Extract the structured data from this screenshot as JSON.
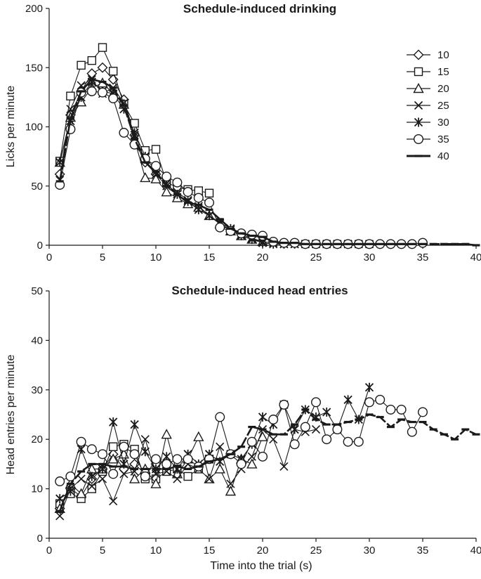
{
  "chart_data": [
    {
      "type": "line",
      "title": "Schedule-induced drinking",
      "xlabel": "",
      "ylabel": "Licks per minute",
      "xlim": [
        0,
        40
      ],
      "ylim": [
        0,
        200
      ],
      "xticks": [
        0,
        5,
        10,
        15,
        20,
        25,
        30,
        35,
        40
      ],
      "yticks": [
        0,
        50,
        100,
        150,
        200
      ],
      "legend": "top-right",
      "series": [
        {
          "name": "10",
          "marker": "diamond",
          "x": [
            1,
            2,
            3,
            4,
            5,
            6,
            7,
            8,
            9,
            10
          ],
          "values": [
            60,
            110,
            130,
            145,
            150,
            140,
            123,
            93,
            70,
            60
          ]
        },
        {
          "name": "15",
          "marker": "square",
          "x": [
            1,
            2,
            3,
            4,
            5,
            6,
            7,
            8,
            9,
            10,
            11,
            12,
            13,
            14,
            15
          ],
          "values": [
            71,
            126,
            152,
            156,
            167,
            147,
            119,
            103,
            80,
            81,
            53,
            49,
            47,
            46,
            44
          ]
        },
        {
          "name": "20",
          "marker": "triangle",
          "x": [
            1,
            2,
            3,
            4,
            5,
            6,
            7,
            8,
            9,
            10,
            11,
            12,
            13,
            14,
            15,
            16,
            17,
            18,
            19,
            20
          ],
          "values": [
            70,
            108,
            121,
            133,
            137,
            128,
            119,
            89,
            57,
            56,
            45,
            40,
            35,
            32,
            25,
            18,
            12,
            8,
            5,
            3
          ]
        },
        {
          "name": "25",
          "marker": "x",
          "x": [
            1,
            2,
            3,
            4,
            5,
            6,
            7,
            8,
            9,
            10,
            11,
            12,
            13,
            14,
            15,
            16,
            17,
            18,
            19,
            20,
            21,
            22,
            23,
            24,
            25
          ],
          "values": [
            55,
            115,
            135,
            140,
            128,
            133,
            120,
            93,
            72,
            60,
            50,
            45,
            38,
            33,
            25,
            18,
            13,
            9,
            6,
            3,
            2,
            1,
            1,
            1,
            1
          ]
        },
        {
          "name": "30",
          "marker": "star",
          "x": [
            1,
            2,
            3,
            4,
            5,
            6,
            7,
            8,
            9,
            10,
            11,
            12,
            13,
            14,
            15,
            16,
            17,
            18,
            19,
            20,
            21,
            22,
            23,
            24,
            25,
            26,
            27,
            28,
            29,
            30
          ],
          "values": [
            70,
            105,
            125,
            138,
            130,
            128,
            115,
            95,
            75,
            62,
            52,
            43,
            37,
            30,
            25,
            19,
            14,
            8,
            5,
            2,
            1,
            1,
            1,
            1,
            1,
            1,
            1,
            1,
            1,
            1
          ]
        },
        {
          "name": "35",
          "marker": "circle",
          "x": [
            1,
            2,
            3,
            4,
            5,
            6,
            7,
            8,
            9,
            10,
            11,
            12,
            13,
            14,
            15,
            16,
            17,
            18,
            19,
            20,
            21,
            22,
            23,
            24,
            25,
            26,
            27,
            28,
            29,
            30,
            31,
            32,
            33,
            34,
            35
          ],
          "values": [
            51,
            98,
            129,
            130,
            129,
            124,
            95,
            85,
            73,
            67,
            58,
            53,
            45,
            40,
            36,
            15,
            12,
            10,
            9,
            8,
            3,
            2,
            2,
            1,
            1,
            1,
            1,
            1,
            1,
            1,
            1,
            1,
            1,
            1,
            2
          ]
        },
        {
          "name": "40",
          "marker": "dash",
          "x": [
            1,
            2,
            3,
            4,
            5,
            6,
            7,
            8,
            9,
            10,
            11,
            12,
            13,
            14,
            15,
            16,
            17,
            18,
            19,
            20,
            21,
            22,
            23,
            24,
            25,
            26,
            27,
            28,
            29,
            30,
            31,
            32,
            33,
            34,
            35,
            36,
            37,
            38,
            39,
            40
          ],
          "values": [
            54,
            107,
            130,
            140,
            138,
            133,
            118,
            90,
            70,
            62,
            50,
            43,
            36,
            34,
            30,
            22,
            14,
            10,
            8,
            7,
            3,
            2,
            2,
            1,
            1,
            1,
            1,
            1,
            1,
            1,
            1,
            1,
            1,
            1,
            1,
            1,
            1,
            1,
            1,
            0
          ]
        }
      ]
    },
    {
      "type": "line",
      "title": "Schedule-induced head entries",
      "xlabel": "Time into the trial (s)",
      "ylabel": "Head entries per minute",
      "xlim": [
        0,
        40
      ],
      "ylim": [
        0,
        50
      ],
      "xticks": [
        0,
        5,
        10,
        15,
        20,
        25,
        30,
        35,
        40
      ],
      "yticks": [
        0,
        10,
        20,
        30,
        40,
        50
      ],
      "series": [
        {
          "name": "10",
          "marker": "diamond",
          "x": [
            1,
            2,
            3,
            4,
            5,
            6,
            7,
            8,
            9,
            10
          ],
          "values": [
            6,
            10,
            8.5,
            12,
            14,
            17,
            14,
            15,
            13,
            15
          ]
        },
        {
          "name": "15",
          "marker": "square",
          "x": [
            1,
            2,
            3,
            4,
            5,
            6,
            7,
            8,
            9,
            10,
            11,
            12,
            13,
            14,
            15
          ],
          "values": [
            7,
            9,
            8,
            10,
            13.5,
            18.5,
            19,
            18,
            12,
            12,
            13.5,
            14,
            12.5,
            14,
            16
          ]
        },
        {
          "name": "20",
          "marker": "triangle",
          "x": [
            1,
            2,
            3,
            4,
            5,
            6,
            7,
            8,
            9,
            10,
            11,
            12,
            13,
            14,
            15,
            16,
            17,
            18,
            19,
            20
          ],
          "values": [
            6,
            11,
            9,
            14,
            14,
            16,
            17,
            12,
            14,
            11,
            21,
            13,
            16,
            20.5,
            12,
            14,
            9.5,
            16,
            15,
            20.5
          ]
        },
        {
          "name": "25",
          "marker": "x",
          "x": [
            1,
            2,
            3,
            4,
            5,
            6,
            7,
            8,
            9,
            10,
            11,
            12,
            13,
            14,
            15,
            16,
            17,
            18,
            19,
            20,
            21,
            22,
            23,
            24,
            25
          ],
          "values": [
            4.5,
            10,
            12,
            10.5,
            12,
            7.5,
            13,
            13.5,
            20,
            13,
            13.5,
            12,
            15,
            14,
            12,
            18.5,
            11,
            14,
            16.5,
            22,
            20,
            14.5,
            22,
            21.5,
            22
          ]
        },
        {
          "name": "30",
          "marker": "star",
          "x": [
            1,
            2,
            3,
            4,
            5,
            6,
            7,
            8,
            9,
            10,
            11,
            12,
            13,
            14,
            15,
            16,
            17,
            18,
            19,
            20,
            21,
            22,
            23,
            24,
            25,
            26,
            27,
            28,
            29,
            30
          ],
          "values": [
            8,
            9.5,
            18,
            12.5,
            14,
            23.5,
            15,
            23,
            17.5,
            14,
            16.5,
            14,
            17,
            15,
            17,
            15.5,
            17,
            16,
            19,
            24.5,
            23,
            27,
            22,
            26,
            24.5,
            25.5,
            22,
            28,
            24,
            30.5
          ]
        },
        {
          "name": "35",
          "marker": "circle",
          "x": [
            1,
            2,
            3,
            4,
            5,
            6,
            7,
            8,
            9,
            10,
            11,
            12,
            13,
            14,
            15,
            16,
            17,
            18,
            19,
            20,
            21,
            22,
            23,
            24,
            25,
            26,
            27,
            28,
            29,
            30,
            31,
            32,
            33,
            34,
            35
          ],
          "values": [
            11.5,
            12.5,
            19.5,
            18,
            17,
            13,
            18.5,
            17,
            12.5,
            16,
            15,
            16,
            16,
            14.5,
            16,
            24.5,
            17,
            15,
            19.5,
            16.5,
            24,
            27,
            19,
            22.5,
            27.5,
            20,
            22,
            19.5,
            19.5,
            27.5,
            28,
            26,
            26,
            21.5,
            25.5
          ]
        },
        {
          "name": "40",
          "marker": "dash",
          "x": [
            1,
            2,
            3,
            4,
            5,
            6,
            7,
            8,
            9,
            10,
            11,
            12,
            13,
            14,
            15,
            16,
            17,
            18,
            19,
            20,
            21,
            22,
            23,
            24,
            25,
            26,
            27,
            28,
            29,
            30,
            31,
            32,
            33,
            34,
            35,
            36,
            37,
            38,
            39,
            40
          ],
          "values": [
            5.5,
            11,
            13.5,
            15,
            15,
            14.5,
            14.5,
            14,
            14,
            14,
            14,
            14.5,
            14,
            14.5,
            15.5,
            16,
            17,
            18.5,
            22.5,
            22,
            21,
            21,
            23,
            26,
            24,
            23,
            23,
            23.5,
            24,
            25,
            24.5,
            22.5,
            24,
            23.5,
            23.5,
            22,
            21,
            20,
            22,
            21
          ]
        }
      ]
    }
  ]
}
